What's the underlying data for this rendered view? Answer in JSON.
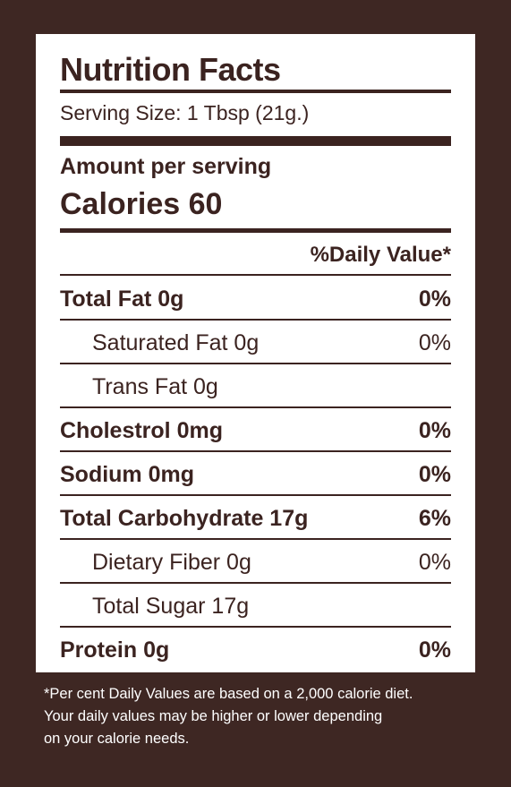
{
  "label": {
    "title": "Nutrition Facts",
    "serving_size": "Serving Size: 1 Tbsp (21g.)",
    "amount_per_serving": "Amount per serving",
    "calories": "Calories 60",
    "daily_value_header": "%Daily Value*",
    "rows": [
      {
        "name": "Total Fat 0g",
        "dv": "0%"
      },
      {
        "name": "Saturated Fat 0g",
        "dv": "0%"
      },
      {
        "name": "Trans Fat 0g",
        "dv": ""
      },
      {
        "name": "Cholestrol 0mg",
        "dv": "0%"
      },
      {
        "name": "Sodium 0mg",
        "dv": "0%"
      },
      {
        "name": "Total Carbohydrate 17g",
        "dv": "6%"
      },
      {
        "name": "Dietary Fiber 0g",
        "dv": "0%"
      },
      {
        "name": "Total Sugar 17g",
        "dv": ""
      },
      {
        "name": "Protein 0g",
        "dv": "0%"
      }
    ]
  },
  "footnote": {
    "line1": "*Per cent Daily Values are based on a 2,000 calorie diet.",
    "line2": "Your daily values may be higher or lower depending",
    "line3": "on your calorie needs."
  },
  "colors": {
    "background": "#3e2723",
    "panel": "#ffffff",
    "text": "#3b2320"
  }
}
